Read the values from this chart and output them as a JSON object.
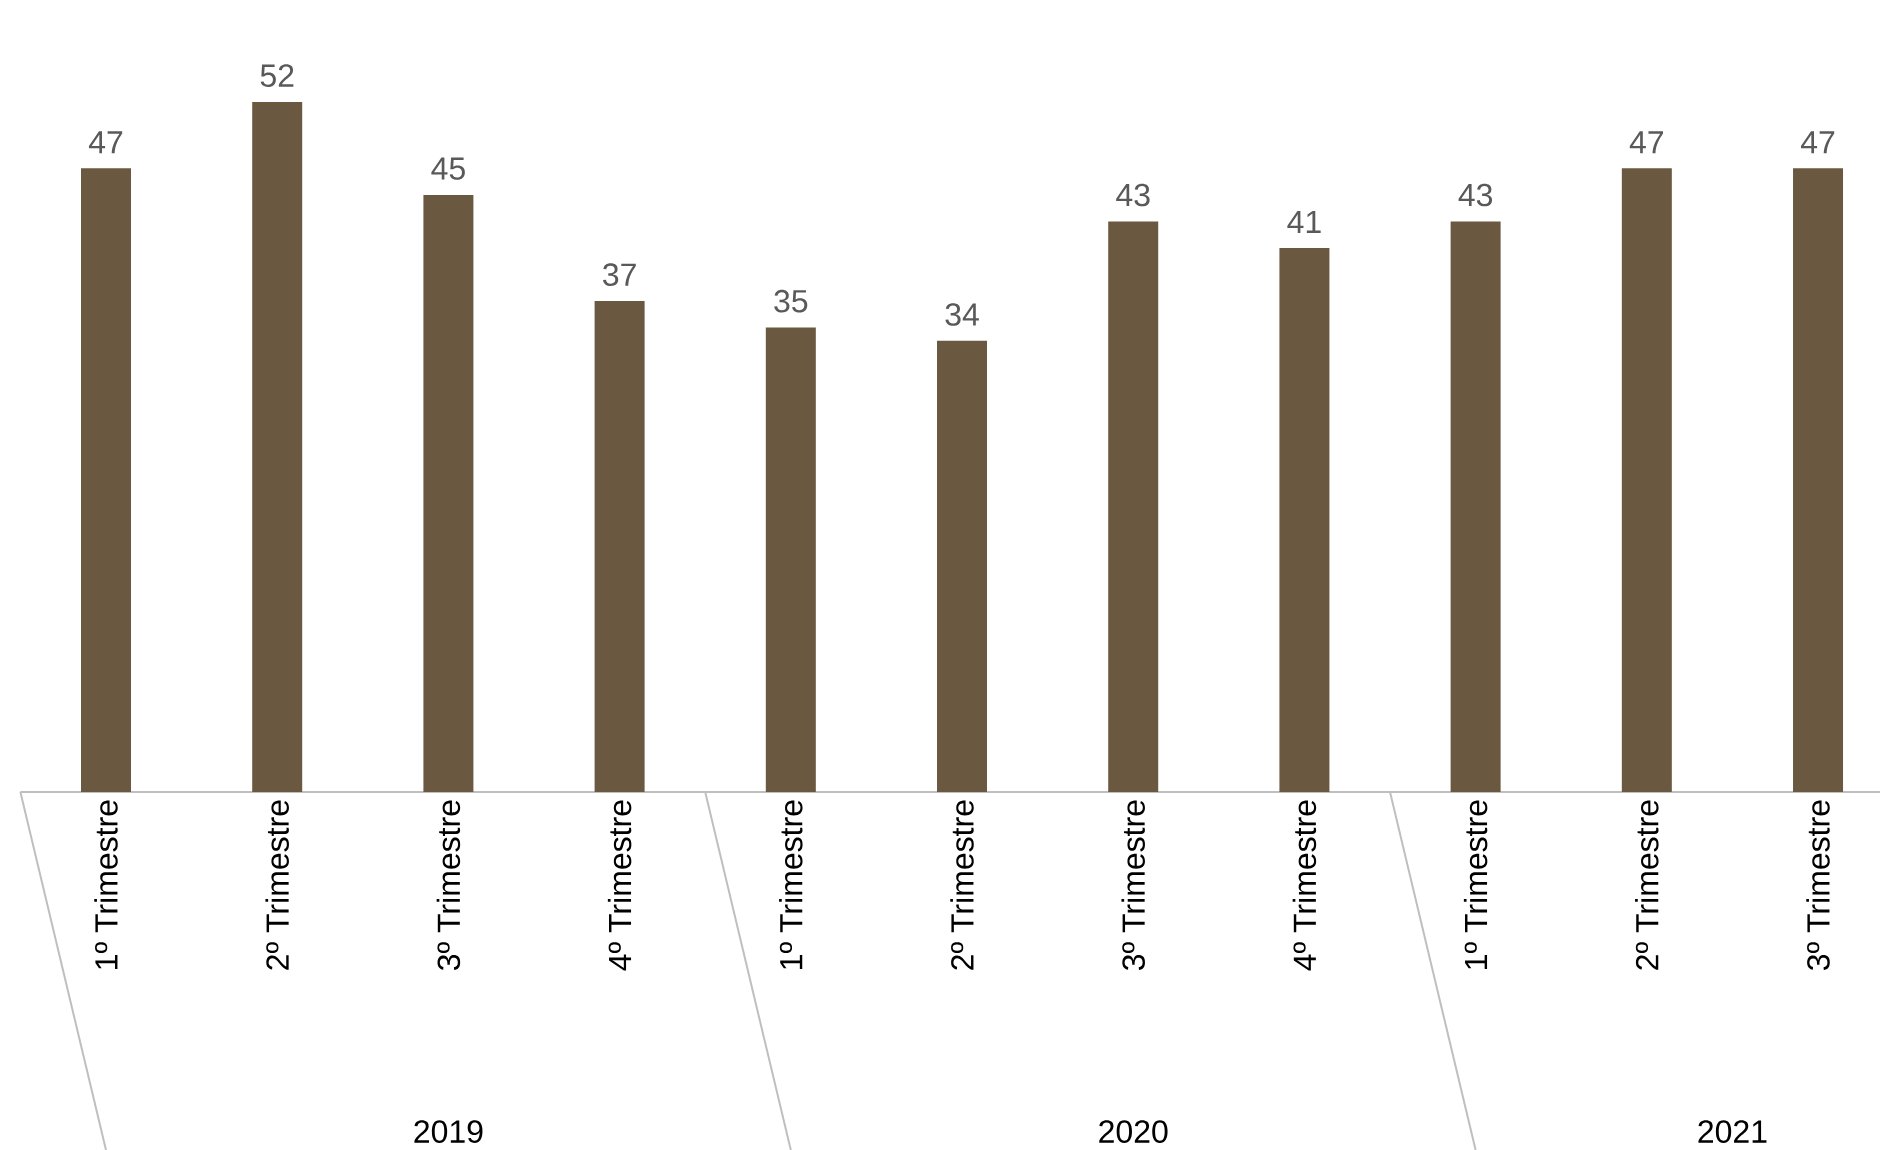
{
  "chart_data": {
    "type": "bar",
    "categories": [
      "1º Trimestre",
      "2º Trimestre",
      "3º Trimestre",
      "4º Trimestre",
      "1º Trimestre",
      "2º Trimestre",
      "3º Trimestre",
      "4º Trimestre",
      "1º Trimestre",
      "2º Trimestre",
      "3º Trimestre"
    ],
    "values": [
      47,
      52,
      45,
      37,
      35,
      34,
      43,
      41,
      43,
      47,
      47
    ],
    "color": "#6b5840",
    "data_labels": true,
    "annotations": [
      "2019",
      "2020",
      "2021"
    ]
  }
}
